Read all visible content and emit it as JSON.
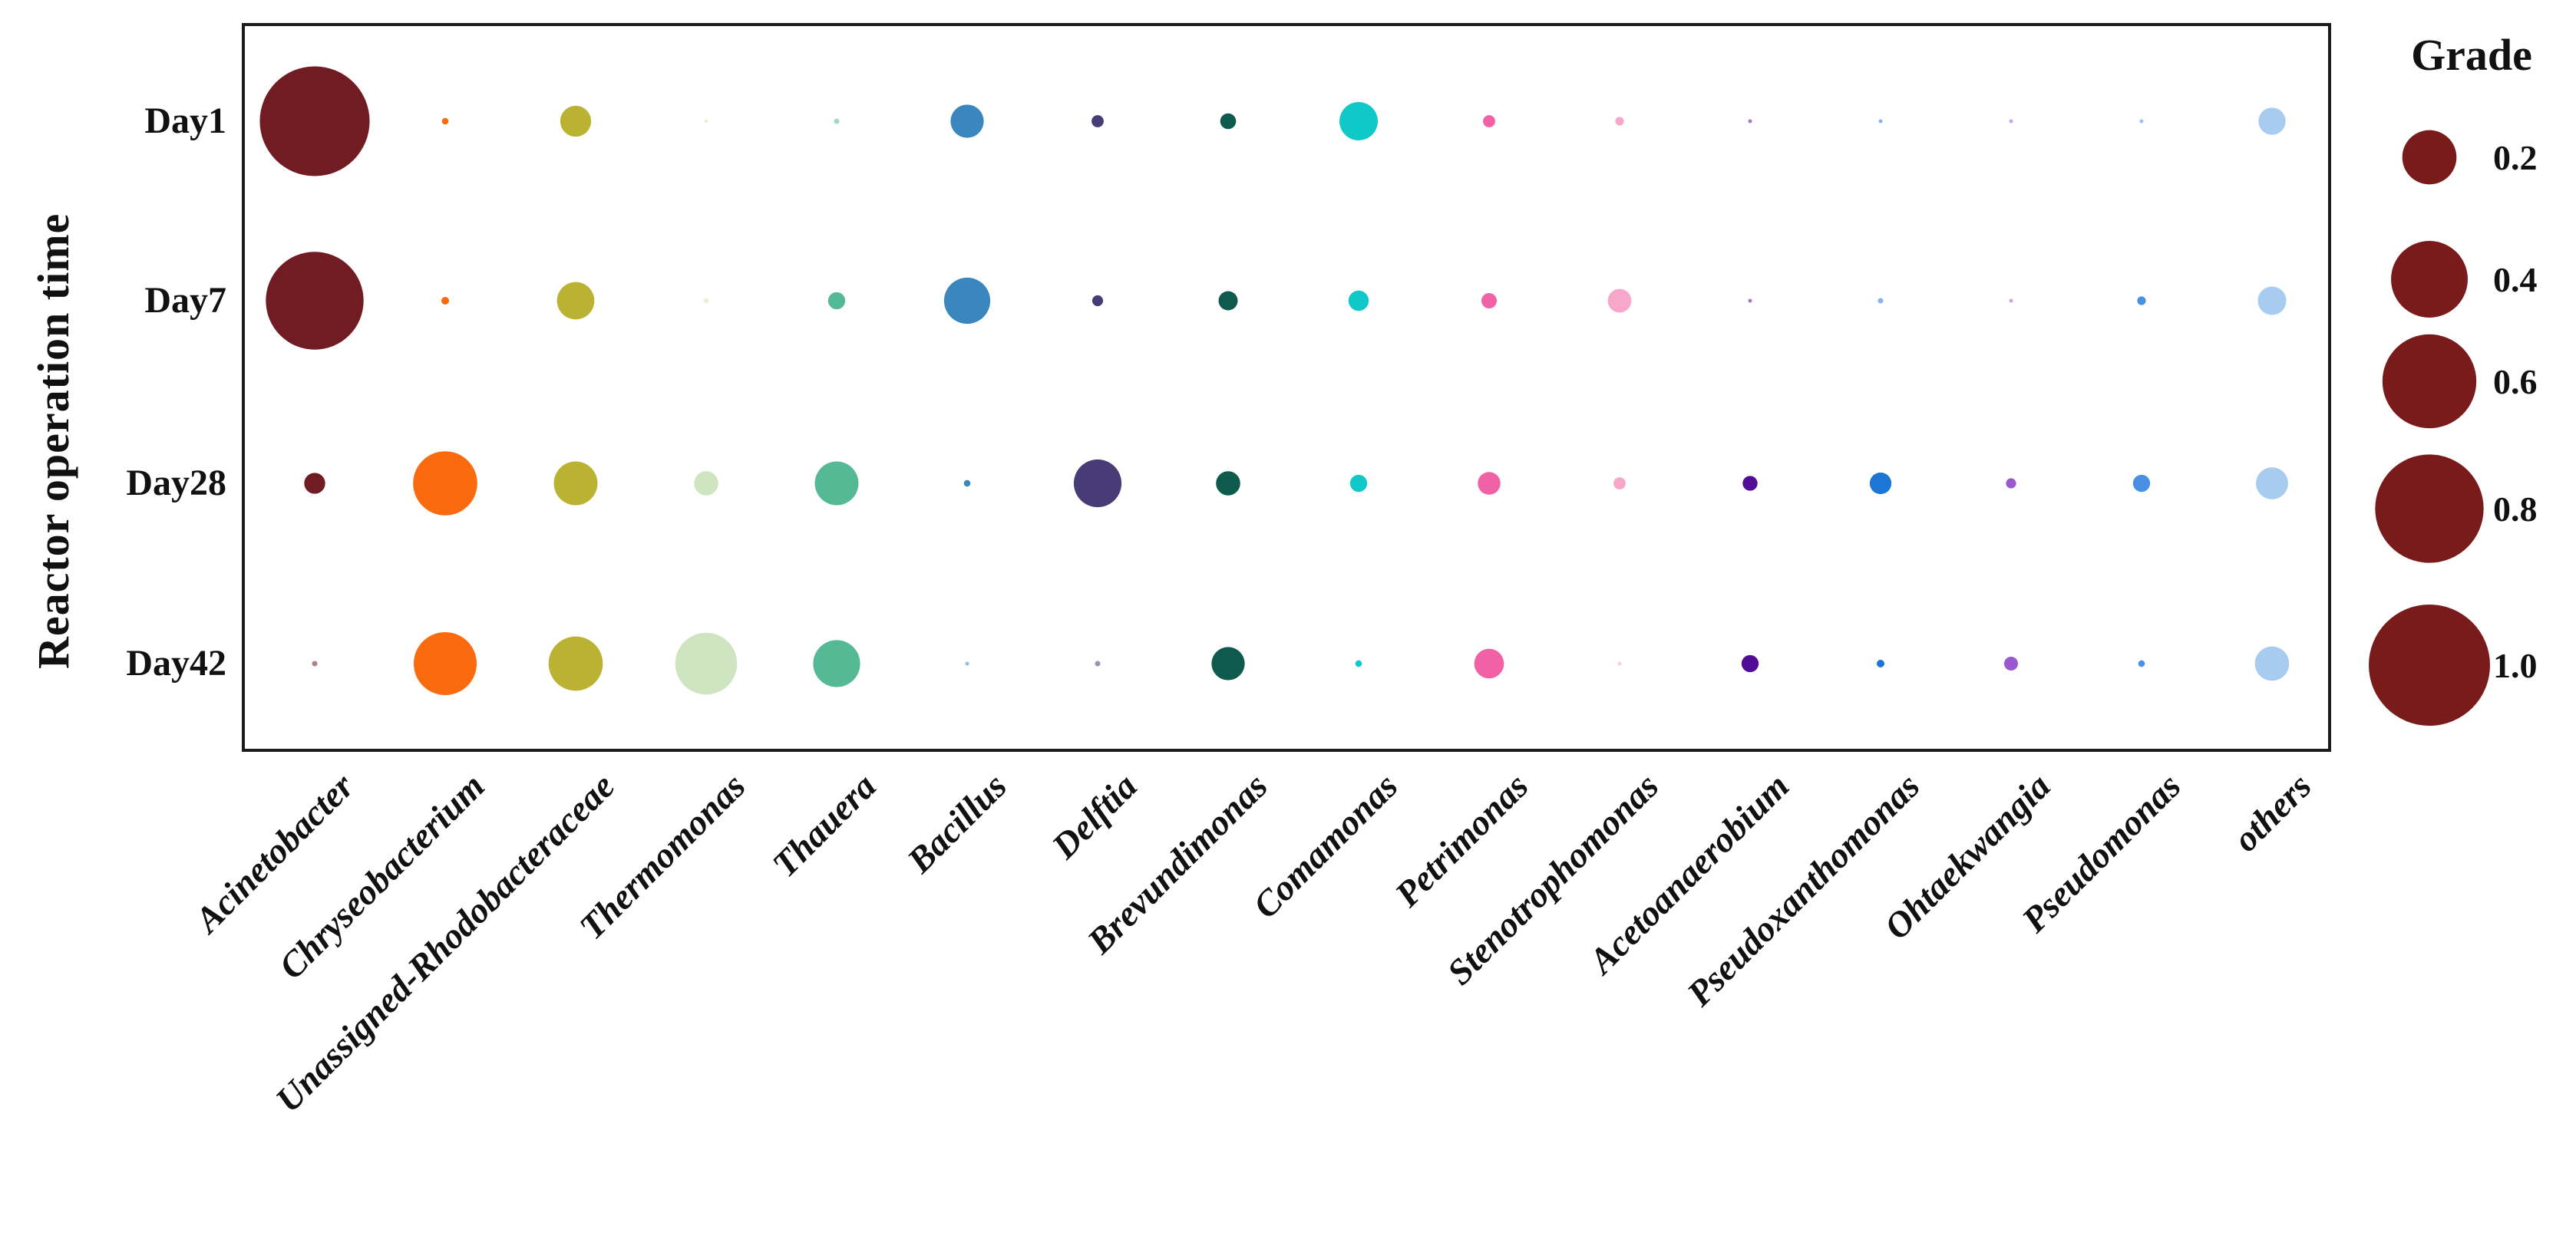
{
  "figure": {
    "y_axis_title": "Reactor operation time",
    "legend_title": "Grade"
  },
  "chart_data": {
    "type": "scatter",
    "subtype": "bubble-matrix",
    "title": "",
    "xlabel": "",
    "ylabel": "Reactor operation time",
    "grid": false,
    "x_categories": [
      "Acinetobacter",
      "Chryseobacterium",
      "Unassigned-Rhodobacteraceae",
      "Thermomonas",
      "Thauera",
      "Bacillus",
      "Delftia",
      "Brevundimonas",
      "Comamonas",
      "Petrimonas",
      "Stenotrophomonas",
      "Acetoanaerobium",
      "Pseudoxanthomonas",
      "Ohtaekwangia",
      "Pseudomonas",
      "others"
    ],
    "y_categories": [
      "Day1",
      "Day7",
      "Day28",
      "Day42"
    ],
    "size_encoding": "circle area proportional to Grade; diameter_px = 158 * sqrt(grade)",
    "series": [
      {
        "name": "Acinetobacter",
        "color": "#711c23",
        "grades": [
          0.82,
          0.65,
          0.03,
          0.002
        ]
      },
      {
        "name": "Chryseobacterium",
        "color": "#fa6b0f",
        "grades": [
          0.003,
          0.004,
          0.28,
          0.27
        ]
      },
      {
        "name": "Unassigned-Rhodobacteraceae",
        "color": "#b9b232",
        "grades": [
          0.065,
          0.095,
          0.13,
          0.2
        ]
      },
      {
        "name": "Thermomonas",
        "color": "#cfe5c2",
        "grades": [
          0.001,
          0.002,
          0.04,
          0.26
        ]
      },
      {
        "name": "Thauera",
        "color": "#55b995",
        "grades": [
          0.002,
          0.02,
          0.13,
          0.15
        ]
      },
      {
        "name": "Bacillus",
        "color": "#3a87c0",
        "grades": [
          0.075,
          0.145,
          0.003,
          0.001
        ]
      },
      {
        "name": "Delftia",
        "color": "#473c75",
        "grades": [
          0.01,
          0.008,
          0.155,
          0.002
        ]
      },
      {
        "name": "Brevundimonas",
        "color": "#0e5a4c",
        "grades": [
          0.017,
          0.025,
          0.04,
          0.075
        ]
      },
      {
        "name": "Comamonas",
        "color": "#10c8c8",
        "grades": [
          0.1,
          0.028,
          0.02,
          0.003
        ]
      },
      {
        "name": "Petrimonas",
        "color": "#f161a5",
        "grades": [
          0.01,
          0.016,
          0.035,
          0.06
        ]
      },
      {
        "name": "Stenotrophomonas",
        "color": "#f7a8ca",
        "grades": [
          0.005,
          0.038,
          0.01,
          0.001
        ]
      },
      {
        "name": "Acetoanaerobium",
        "color": "#520d96",
        "grades": [
          0.001,
          0.001,
          0.015,
          0.02
        ]
      },
      {
        "name": "Pseudoxanthomonas",
        "color": "#1b76d6",
        "grades": [
          0.001,
          0.002,
          0.032,
          0.004
        ]
      },
      {
        "name": "Ohtaekwangia",
        "color": "#9b59d0",
        "grades": [
          0.001,
          0.001,
          0.007,
          0.013
        ]
      },
      {
        "name": "Pseudomonas",
        "color": "#4a90e2",
        "grades": [
          0.001,
          0.005,
          0.02,
          0.003
        ]
      },
      {
        "name": "others",
        "color": "#a8cbf0",
        "grades": [
          0.05,
          0.055,
          0.07,
          0.08
        ]
      }
    ],
    "legend": {
      "title": "Grade",
      "position": "right",
      "sizes": [
        "0.2",
        "0.4",
        "0.6",
        "0.8",
        "1.0"
      ],
      "circle_color": "#7a1b1b"
    }
  }
}
